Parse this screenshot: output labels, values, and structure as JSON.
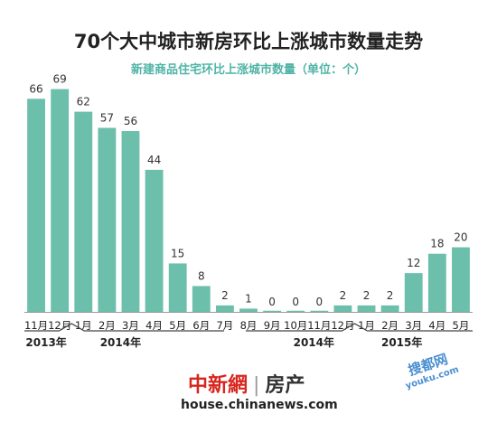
{
  "title": "70个大中城市新房环比上涨城市数量走势",
  "subtitle": "新建商品住宅环比上涨城市数量（单位：个）",
  "brand": {
    "name_cn": "中新網",
    "separator": "|",
    "name_suffix": "房产",
    "website": "house.chinanews.com"
  },
  "badge": {
    "line1": "搜都网",
    "line2": "youku.com"
  },
  "colors": {
    "bar": "#6bbfab",
    "text": "#222222",
    "subtitle": "#4fb3a6",
    "axis": "#555555"
  },
  "chart_data": {
    "type": "bar",
    "title": "70个大中城市新房环比上涨城市数量走势",
    "subtitle": "新建商品住宅环比上涨城市数量（单位：个）",
    "categories": [
      "11月",
      "12月",
      "1月",
      "2月",
      "3月",
      "4月",
      "5月",
      "6月",
      "7月",
      "8月",
      "9月",
      "10月",
      "11月",
      "12月",
      "1月",
      "2月",
      "3月",
      "4月",
      "5月"
    ],
    "values": [
      66,
      69,
      62,
      57,
      56,
      44,
      15,
      8,
      2,
      1,
      0,
      0,
      0,
      2,
      2,
      2,
      12,
      18,
      20
    ],
    "year_groups": [
      {
        "label": "2013年",
        "start": 0,
        "end": 1
      },
      {
        "label": "2014年",
        "start": 2,
        "end": 8
      },
      {
        "label": "2014年",
        "start": 9,
        "end": 13
      },
      {
        "label": "2015年",
        "start": 14,
        "end": 18
      }
    ],
    "ylim": [
      0,
      70
    ],
    "grid": false,
    "legend": "none",
    "data_labels": true
  }
}
